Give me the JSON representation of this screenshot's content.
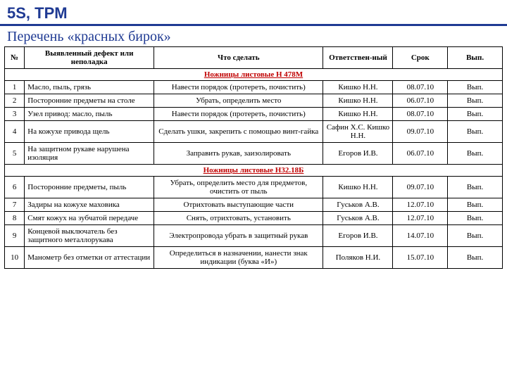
{
  "header": {
    "title": "5S, TPM",
    "subtitle": "Перечень «красных бирок»"
  },
  "columns": {
    "num": "№",
    "defect": "Выявленный дефект или неполадка",
    "action": "Что сделать",
    "responsible": "Ответствен-ный",
    "date": "Срок",
    "status": "Вып."
  },
  "section1": "Ножницы листовые Н 478М",
  "section2": "Ножницы листовые Н32.18Б",
  "rows1": [
    {
      "num": "1",
      "defect": "Масло, пыль, грязь",
      "action": "Навести порядок (протереть, почистить)",
      "resp": "Кишко Н.Н.",
      "date": "08.07.10",
      "status": "Вып."
    },
    {
      "num": "2",
      "defect": "Посторонние предметы на столе",
      "action": "Убрать, определить место",
      "resp": "Кишко Н.Н.",
      "date": "06.07.10",
      "status": "Вып."
    },
    {
      "num": "3",
      "defect": "Узел привод: масло, пыль",
      "action": "Навести порядок (протереть, почистить)",
      "resp": "Кишко Н.Н.",
      "date": "08.07.10",
      "status": "Вып."
    },
    {
      "num": "4",
      "defect": "На кожухе привода щель",
      "action": "Сделать ушки, закрепить с помощью винт-гайка",
      "resp": "Сафин Х.С. Кишко Н.Н.",
      "date": "09.07.10",
      "status": "Вып."
    },
    {
      "num": "5",
      "defect": "На защитном рукаве нарушена изоляция",
      "action": "Заправить рукав, заизолировать",
      "resp": "Егоров И.В.",
      "date": "06.07.10",
      "status": "Вып."
    }
  ],
  "rows2": [
    {
      "num": "6",
      "defect": "Посторонние предметы, пыль",
      "action": "Убрать, определить место для предметов, очистить от пыль",
      "resp": "Кишко Н.Н.",
      "date": "09.07.10",
      "status": "Вып."
    },
    {
      "num": "7",
      "defect": "Задиры на кожухе маховика",
      "action": "Отрихтовать выступающие части",
      "resp": "Гуськов А.В.",
      "date": "12.07.10",
      "status": "Вып."
    },
    {
      "num": "8",
      "defect": "Смят кожух на зубчатой передаче",
      "action": "Снять, отрихтовать, установить",
      "resp": "Гуськов А.В.",
      "date": "12.07.10",
      "status": "Вып."
    },
    {
      "num": "9",
      "defect": "Концевой выключатель без защитного металлорукава",
      "action": "Электропровода убрать в защитный рукав",
      "resp": "Егоров И.В.",
      "date": "14.07.10",
      "status": "Вып."
    },
    {
      "num": "10",
      "defect": "Манометр без отметки от аттестации",
      "action": "Определиться в назначении, нанести знак индикации (буква «И»)",
      "resp": "Поляков Н.И.",
      "date": "15.07.10",
      "status": "Вып."
    }
  ]
}
